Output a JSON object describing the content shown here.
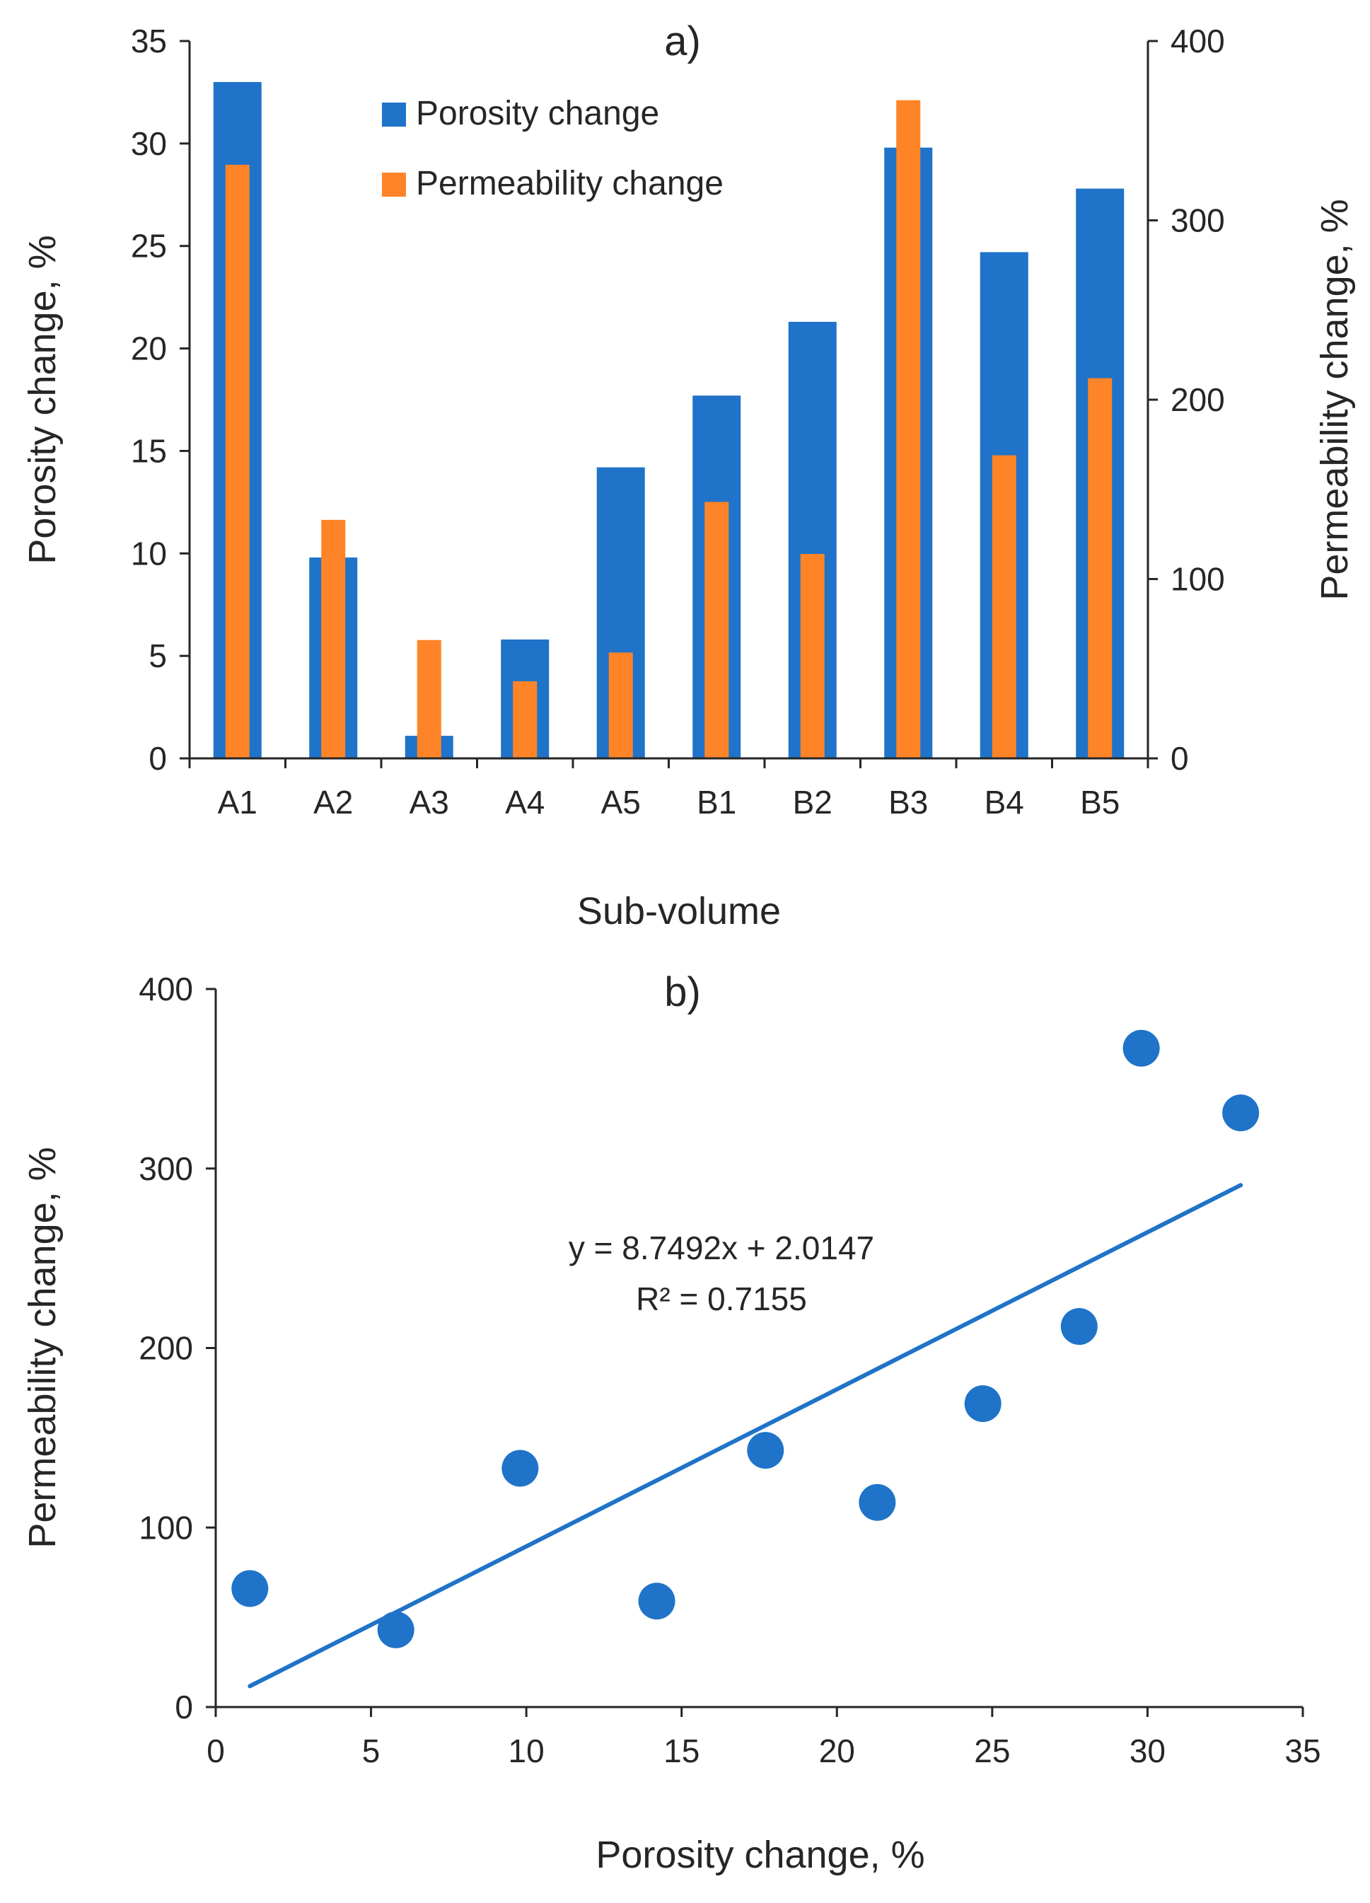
{
  "colors": {
    "porosity": "#1F73C8",
    "permeability": "#FF8427",
    "axis": "#262626"
  },
  "chart_data": [
    {
      "type": "bar",
      "panel_label": "a)",
      "categories": [
        "A1",
        "A2",
        "A3",
        "A4",
        "A5",
        "B1",
        "B2",
        "B3",
        "B4",
        "B5"
      ],
      "series": [
        {
          "name": "Porosity change",
          "axis": "left",
          "values": [
            33.0,
            9.8,
            1.1,
            5.8,
            14.2,
            17.7,
            21.3,
            29.8,
            24.7,
            27.8
          ]
        },
        {
          "name": "Permeability change",
          "axis": "right",
          "values": [
            331,
            133,
            66,
            43,
            59,
            143,
            114,
            367,
            169,
            212
          ]
        }
      ],
      "xlabel": "Sub-volume",
      "ylabel": "Porosity change, %",
      "y2label": "Permeability change, %",
      "ylim": [
        0,
        35
      ],
      "y2lim": [
        0,
        400
      ],
      "yticks": [
        0,
        5,
        10,
        15,
        20,
        25,
        30,
        35
      ],
      "y2ticks": [
        0,
        100,
        200,
        300,
        400
      ],
      "legend": {
        "position": "top-center",
        "entries": [
          "Porosity change",
          "Permeability change"
        ]
      },
      "grid": false
    },
    {
      "type": "scatter",
      "panel_label": "b)",
      "points": [
        {
          "x": 1.1,
          "y": 66
        },
        {
          "x": 5.8,
          "y": 43
        },
        {
          "x": 9.8,
          "y": 133
        },
        {
          "x": 14.2,
          "y": 59
        },
        {
          "x": 17.7,
          "y": 143
        },
        {
          "x": 21.3,
          "y": 114
        },
        {
          "x": 24.7,
          "y": 169
        },
        {
          "x": 27.8,
          "y": 212
        },
        {
          "x": 29.8,
          "y": 367
        },
        {
          "x": 33.0,
          "y": 331
        }
      ],
      "trendline": {
        "slope": 8.7492,
        "intercept": 2.0147,
        "x_range": [
          1.1,
          33.0
        ]
      },
      "equation_text": "y = 8.7492x + 2.0147",
      "r2_text": "R² = 0.7155",
      "xlabel": "Porosity change, %",
      "ylabel": "Permeability change, %",
      "xlim": [
        0,
        35
      ],
      "ylim": [
        0,
        400
      ],
      "xticks": [
        0,
        5,
        10,
        15,
        20,
        25,
        30,
        35
      ],
      "yticks": [
        0,
        100,
        200,
        300,
        400
      ],
      "grid": false
    }
  ]
}
